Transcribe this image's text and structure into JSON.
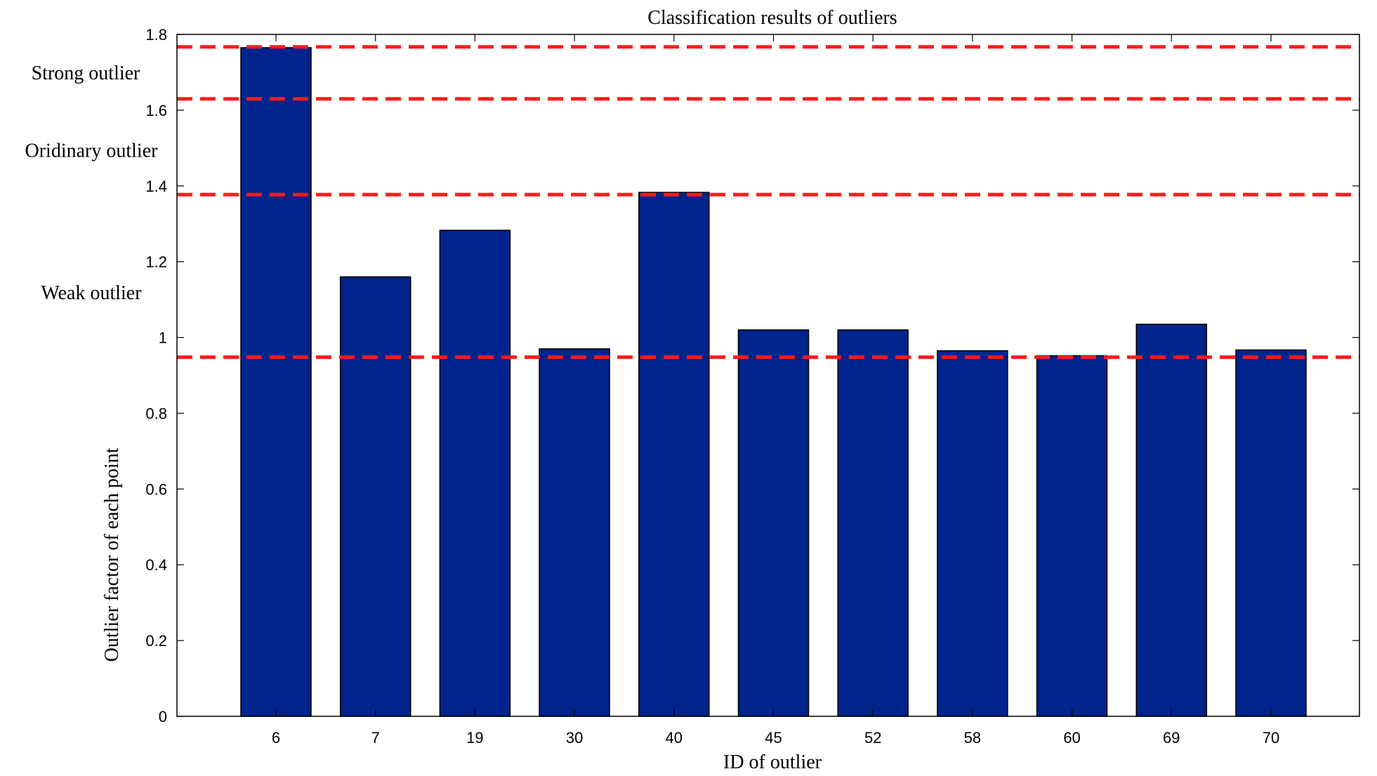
{
  "chart_data": {
    "type": "bar",
    "title": "Classification results of outliers",
    "xlabel": "ID of outlier",
    "ylabel": "Outlier factor of each point",
    "categories": [
      "6",
      "7",
      "19",
      "30",
      "40",
      "45",
      "52",
      "58",
      "60",
      "69",
      "70"
    ],
    "values": [
      1.765,
      1.16,
      1.283,
      0.97,
      1.383,
      1.02,
      1.02,
      0.965,
      0.952,
      1.035,
      0.967
    ],
    "ylim": [
      0,
      1.8
    ],
    "yticks": [
      "0",
      "0.2",
      "0.4",
      "0.6",
      "0.8",
      "1",
      "1.2",
      "1.4",
      "1.6",
      "1.8"
    ],
    "ytick_values": [
      0,
      0.2,
      0.4,
      0.6,
      0.8,
      1.0,
      1.2,
      1.4,
      1.6,
      1.8
    ],
    "grid": false,
    "bar_color": "#00238C",
    "threshold_color": "#ff1a1a",
    "thresholds": [
      1.767,
      1.63,
      1.377,
      0.948
    ],
    "region_labels": [
      {
        "text": "Strong outlier",
        "y": 1.7
      },
      {
        "text": "Oridinary outlier",
        "y": 1.495
      },
      {
        "text": "Weak outlier",
        "y": 1.12
      }
    ]
  }
}
